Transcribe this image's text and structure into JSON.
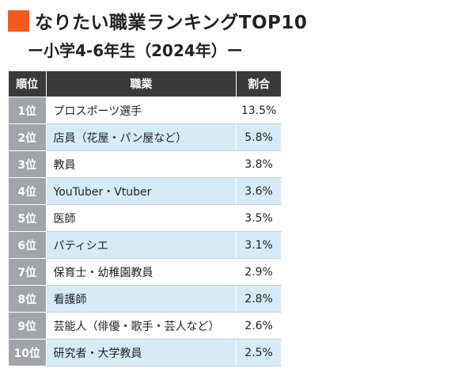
{
  "header": {
    "title": "なりたい職業ランキングTOP10",
    "subtitle": "ー小学4-6年生（2024年）ー",
    "accent_color": "#f25a1e"
  },
  "table": {
    "columns": [
      "順位",
      "職業",
      "割合"
    ],
    "header_bg": "#3a3a3a",
    "rank_bg": "#a1a5a9",
    "stripe_bg": "#d5ecf8"
  },
  "chart_data": {
    "type": "table",
    "title": "なりたい職業ランキングTOP10",
    "subtitle": "ー小学4-6年生（2024年）ー",
    "columns": [
      "順位",
      "職業",
      "割合"
    ],
    "rows": [
      {
        "rank": "1位",
        "job": "プロスポーツ選手",
        "share": "13.5%",
        "value": 13.5
      },
      {
        "rank": "2位",
        "job": "店員（花屋・パン屋など）",
        "share": "5.8%",
        "value": 5.8
      },
      {
        "rank": "3位",
        "job": "教員",
        "share": "3.8%",
        "value": 3.8
      },
      {
        "rank": "4位",
        "job": "YouTuber・Vtuber",
        "share": "3.6%",
        "value": 3.6
      },
      {
        "rank": "5位",
        "job": "医師",
        "share": "3.5%",
        "value": 3.5
      },
      {
        "rank": "6位",
        "job": "パティシエ",
        "share": "3.1%",
        "value": 3.1
      },
      {
        "rank": "7位",
        "job": "保育士・幼稚園教員",
        "share": "2.9%",
        "value": 2.9
      },
      {
        "rank": "8位",
        "job": "看護師",
        "share": "2.8%",
        "value": 2.8
      },
      {
        "rank": "9位",
        "job": "芸能人（俳優・歌手・芸人など）",
        "share": "2.6%",
        "value": 2.6
      },
      {
        "rank": "10位",
        "job": "研究者・大学教員",
        "share": "2.5%",
        "value": 2.5
      }
    ]
  }
}
